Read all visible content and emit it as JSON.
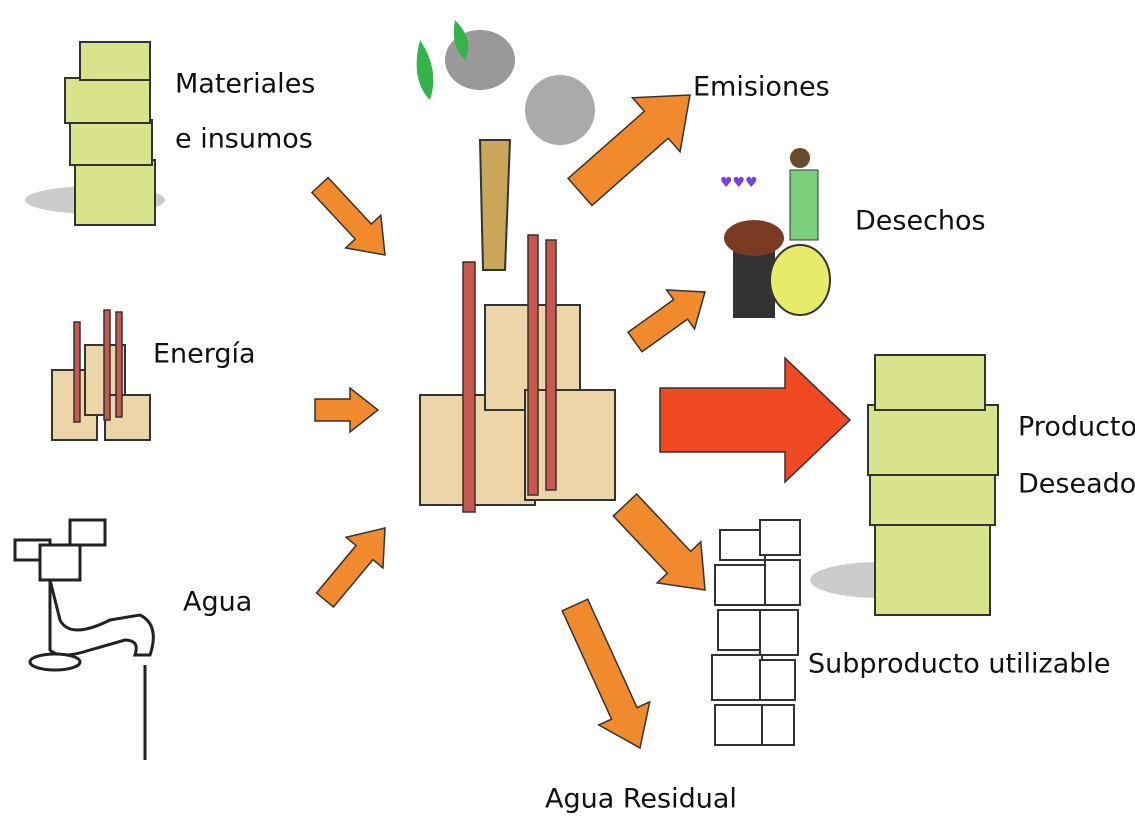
{
  "inputs": [
    {
      "lines": [
        "Materiales",
        "e insumos"
      ]
    },
    {
      "lines": [
        "Energía"
      ]
    },
    {
      "lines": [
        "Agua"
      ]
    }
  ],
  "outputs": [
    {
      "lines": [
        "Emisiones"
      ]
    },
    {
      "lines": [
        "Desechos"
      ]
    },
    {
      "lines": [
        "Producto",
        "Deseado"
      ]
    },
    {
      "lines": [
        "Subproducto utilizable"
      ]
    },
    {
      "lines": [
        "Agua Residual"
      ]
    }
  ]
}
